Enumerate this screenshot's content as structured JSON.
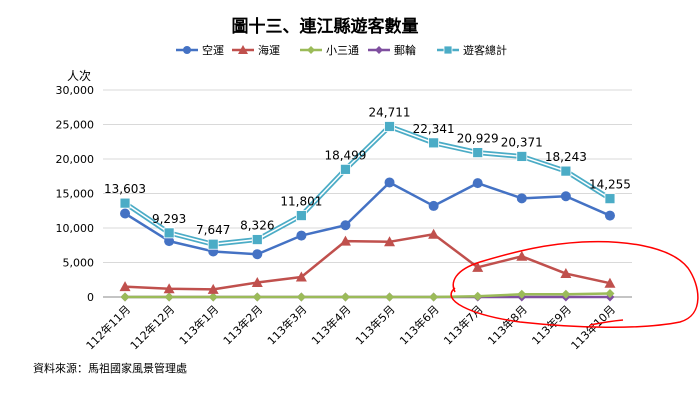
{
  "chart_data": {
    "type": "line",
    "title": "圖十三、連江縣遊客數量",
    "ylabel": "人次",
    "source_note": "資料來源：馬祖國家風景管理處",
    "categories": [
      "112年11月",
      "112年12月",
      "113年1月",
      "113年2月",
      "113年3月",
      "113年4月",
      "113年5月",
      "113年6月",
      "113年7月",
      "113年8月",
      "113年9月",
      "113年10月"
    ],
    "y_ticks": [
      "0",
      "5,000",
      "10,000",
      "15,000",
      "20,000",
      "25,000",
      "30,000"
    ],
    "ylim": [
      0,
      30000
    ],
    "grid": "horizontal",
    "legend_position": "top",
    "series": [
      {
        "name": "空運",
        "color": "#4472C4",
        "marker": "circle",
        "values": [
          12100,
          8100,
          6600,
          6200,
          8900,
          10400,
          16600,
          13200,
          16500,
          14300,
          14600,
          11800
        ]
      },
      {
        "name": "海運",
        "color": "#C0504D",
        "marker": "triangle",
        "values": [
          1500,
          1200,
          1100,
          2100,
          2900,
          8100,
          8000,
          9100,
          4300,
          5900,
          3400,
          2000
        ]
      },
      {
        "name": "小三通",
        "color": "#9BBB59",
        "marker": "diamond",
        "values": [
          0,
          0,
          0,
          0,
          0,
          0,
          0,
          0,
          100,
          400,
          400,
          500
        ]
      },
      {
        "name": "郵輪",
        "color": "#7F4F9F",
        "marker": "diamond",
        "values": [
          0,
          0,
          0,
          0,
          0,
          0,
          0,
          0,
          0,
          0,
          0,
          0
        ]
      },
      {
        "name": "遊客總計",
        "color": "#4BACC6",
        "marker": "square",
        "double_line": true,
        "values": [
          13603,
          9293,
          7647,
          8326,
          11801,
          18499,
          24711,
          22341,
          20929,
          20371,
          18243,
          14255
        ],
        "data_labels": [
          "13,603",
          "9,293",
          "7,647",
          "8,326",
          "11,801",
          "18,499",
          "24,711",
          "22,341",
          "20,929",
          "20,371",
          "18,243",
          "14,255"
        ]
      }
    ]
  },
  "annotation": {
    "color": "#FF0000"
  }
}
